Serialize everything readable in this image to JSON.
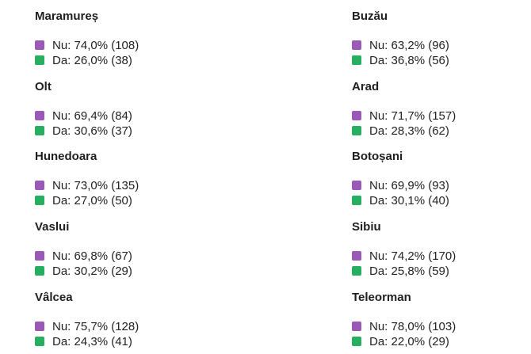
{
  "colors": {
    "Nu": "#9b59b6",
    "Da": "#27ae60"
  },
  "chart_data": [
    {
      "type": "pie",
      "title": "Maramureș",
      "series": [
        {
          "name": "Nu",
          "percent": 74.0,
          "count": 108,
          "label": "Nu: 74,0% (108)"
        },
        {
          "name": "Da",
          "percent": 26.0,
          "count": 38,
          "label": "Da: 26,0% (38)"
        }
      ]
    },
    {
      "type": "pie",
      "title": "Buzău",
      "series": [
        {
          "name": "Nu",
          "percent": 63.2,
          "count": 96,
          "label": "Nu: 63,2% (96)"
        },
        {
          "name": "Da",
          "percent": 36.8,
          "count": 56,
          "label": "Da: 36,8% (56)"
        }
      ]
    },
    {
      "type": "pie",
      "title": "Olt",
      "series": [
        {
          "name": "Nu",
          "percent": 69.4,
          "count": 84,
          "label": "Nu: 69,4% (84)"
        },
        {
          "name": "Da",
          "percent": 30.6,
          "count": 37,
          "label": "Da: 30,6% (37)"
        }
      ]
    },
    {
      "type": "pie",
      "title": "Arad",
      "series": [
        {
          "name": "Nu",
          "percent": 71.7,
          "count": 157,
          "label": "Nu: 71,7% (157)"
        },
        {
          "name": "Da",
          "percent": 28.3,
          "count": 62,
          "label": "Da: 28,3% (62)"
        }
      ]
    },
    {
      "type": "pie",
      "title": "Hunedoara",
      "series": [
        {
          "name": "Nu",
          "percent": 73.0,
          "count": 135,
          "label": "Nu: 73,0% (135)"
        },
        {
          "name": "Da",
          "percent": 27.0,
          "count": 50,
          "label": "Da: 27,0% (50)"
        }
      ]
    },
    {
      "type": "pie",
      "title": "Botoșani",
      "series": [
        {
          "name": "Nu",
          "percent": 69.9,
          "count": 93,
          "label": "Nu: 69,9% (93)"
        },
        {
          "name": "Da",
          "percent": 30.1,
          "count": 40,
          "label": "Da: 30,1% (40)"
        }
      ]
    },
    {
      "type": "pie",
      "title": "Vaslui",
      "series": [
        {
          "name": "Nu",
          "percent": 69.8,
          "count": 67,
          "label": "Nu: 69,8% (67)"
        },
        {
          "name": "Da",
          "percent": 30.2,
          "count": 29,
          "label": "Da: 30,2% (29)"
        }
      ]
    },
    {
      "type": "pie",
      "title": "Sibiu",
      "series": [
        {
          "name": "Nu",
          "percent": 74.2,
          "count": 170,
          "label": "Nu: 74,2% (170)"
        },
        {
          "name": "Da",
          "percent": 25.8,
          "count": 59,
          "label": "Da: 25,8% (59)"
        }
      ]
    },
    {
      "type": "pie",
      "title": "Vâlcea",
      "series": [
        {
          "name": "Nu",
          "percent": 75.7,
          "count": 128,
          "label": "Nu: 75,7% (128)"
        },
        {
          "name": "Da",
          "percent": 24.3,
          "count": 41,
          "label": "Da: 24,3% (41)"
        }
      ]
    },
    {
      "type": "pie",
      "title": "Teleorman",
      "series": [
        {
          "name": "Nu",
          "percent": 78.0,
          "count": 103,
          "label": "Nu: 78,0% (103)"
        },
        {
          "name": "Da",
          "percent": 22.0,
          "count": 29,
          "label": "Da: 22,0% (29)"
        }
      ]
    }
  ]
}
